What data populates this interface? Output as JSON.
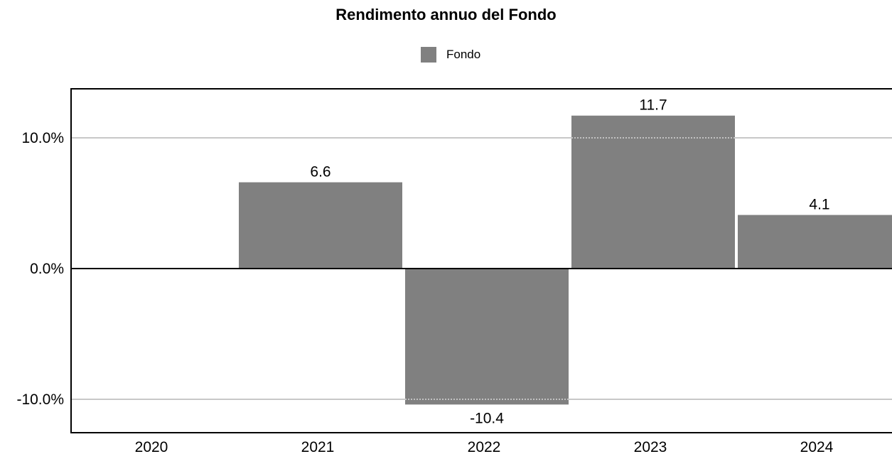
{
  "chart_data": {
    "type": "bar",
    "title": "Rendimento annuo del Fondo",
    "categories": [
      "2020",
      "2021",
      "2022",
      "2023",
      "2024"
    ],
    "series": [
      {
        "name": "Fondo",
        "values": [
          null,
          6.6,
          -10.4,
          11.7,
          4.1
        ],
        "color": "#808080"
      }
    ],
    "data_labels": [
      "",
      "6.6",
      "-10.4",
      "11.7",
      "4.1"
    ],
    "y_ticks": [
      {
        "value": 10,
        "label": "10.0%"
      },
      {
        "value": 0,
        "label": "0.0%"
      },
      {
        "value": -10,
        "label": "-10.0%"
      }
    ],
    "ylim": [
      -12.5,
      13.6
    ],
    "grid": true,
    "legend_position": "top-center",
    "xlabel": "",
    "ylabel": ""
  }
}
